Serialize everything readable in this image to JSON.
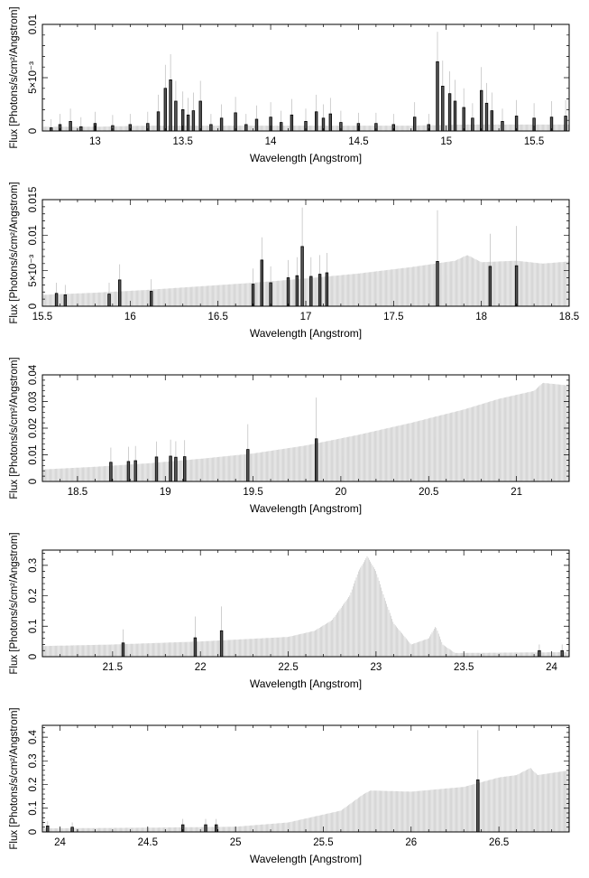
{
  "chart_data": [
    {
      "type": "line",
      "xlabel": "Wavelength [Angstrom]",
      "ylabel": "Flux [Photons/s/cm²/Angstrom]",
      "xlim": [
        12.7,
        15.7
      ],
      "ylim": [
        0,
        0.01
      ],
      "x_ticks": [
        13,
        13.5,
        14,
        14.5,
        15,
        15.5
      ],
      "x_tick_labels": [
        "13",
        "13.5",
        "14",
        "14.5",
        "15",
        "15.5"
      ],
      "y_ticks": [
        0,
        0.005,
        0.01
      ],
      "y_tick_labels": [
        "0",
        "5×10⁻³",
        "0.01"
      ],
      "series": [
        {
          "role": "model",
          "color": "#bdbdbd",
          "x": [
            12.7,
            13.0,
            13.3,
            13.6,
            13.9,
            14.2,
            14.5,
            14.8,
            15.1,
            15.4,
            15.7
          ],
          "y": [
            0.0004,
            0.0004,
            0.0005,
            0.0005,
            0.0005,
            0.0005,
            0.0005,
            0.0005,
            0.0006,
            0.0006,
            0.0006
          ]
        },
        {
          "role": "data",
          "color": "#000000",
          "x": [
            12.75,
            12.8,
            12.86,
            12.92,
            13.0,
            13.1,
            13.2,
            13.3,
            13.36,
            13.4,
            13.43,
            13.46,
            13.5,
            13.53,
            13.56,
            13.6,
            13.66,
            13.72,
            13.8,
            13.86,
            13.92,
            14.0,
            14.06,
            14.12,
            14.2,
            14.26,
            14.3,
            14.34,
            14.4,
            14.5,
            14.6,
            14.7,
            14.82,
            14.9,
            14.95,
            14.98,
            15.02,
            15.05,
            15.1,
            15.15,
            15.2,
            15.23,
            15.26,
            15.32,
            15.4,
            15.5,
            15.6,
            15.68
          ],
          "y": [
            0.0003,
            0.0006,
            0.0009,
            0.0004,
            0.0007,
            0.0005,
            0.0006,
            0.0007,
            0.0018,
            0.004,
            0.0048,
            0.0028,
            0.002,
            0.0015,
            0.0019,
            0.0028,
            0.0006,
            0.0012,
            0.0017,
            0.0006,
            0.0011,
            0.0013,
            0.0008,
            0.0015,
            0.0009,
            0.0018,
            0.0012,
            0.0016,
            0.0008,
            0.0007,
            0.0007,
            0.0006,
            0.0013,
            0.0006,
            0.0065,
            0.0042,
            0.0035,
            0.0028,
            0.0022,
            0.0012,
            0.0038,
            0.0026,
            0.0019,
            0.0009,
            0.0014,
            0.0012,
            0.0013,
            0.0014
          ],
          "err": [
            0.0008,
            0.001,
            0.0012,
            0.0009,
            0.0011,
            0.001,
            0.001,
            0.0011,
            0.0016,
            0.0022,
            0.0024,
            0.0019,
            0.0017,
            0.0016,
            0.0017,
            0.0019,
            0.001,
            0.0013,
            0.0015,
            0.001,
            0.0013,
            0.0014,
            0.0011,
            0.0015,
            0.0012,
            0.0016,
            0.0013,
            0.0015,
            0.0011,
            0.001,
            0.001,
            0.001,
            0.0014,
            0.001,
            0.0028,
            0.0024,
            0.0021,
            0.002,
            0.0018,
            0.0014,
            0.0022,
            0.0019,
            0.0017,
            0.0012,
            0.0015,
            0.0014,
            0.0015,
            0.0015
          ]
        }
      ]
    },
    {
      "type": "line",
      "xlabel": "Wavelength [Angstrom]",
      "ylabel": "Flux [Photons/s/cm²/Angstrom]",
      "xlim": [
        15.5,
        18.5
      ],
      "ylim": [
        0,
        0.015
      ],
      "x_ticks": [
        15.5,
        16,
        16.5,
        17,
        17.5,
        18,
        18.5
      ],
      "x_tick_labels": [
        "15.5",
        "16",
        "16.5",
        "17",
        "17.5",
        "18",
        "18.5"
      ],
      "y_ticks": [
        0,
        0.005,
        0.01,
        0.015
      ],
      "y_tick_labels": [
        "0",
        "5×10⁻³",
        "0.01",
        "0.015"
      ],
      "series": [
        {
          "role": "model",
          "color": "#bdbdbd",
          "x": [
            15.5,
            15.8,
            16.1,
            16.4,
            16.7,
            17.0,
            17.3,
            17.6,
            17.85,
            17.92,
            18.0,
            18.2,
            18.35,
            18.5
          ],
          "y": [
            0.0016,
            0.0019,
            0.0023,
            0.0028,
            0.0033,
            0.0039,
            0.0046,
            0.0055,
            0.0064,
            0.0072,
            0.0062,
            0.0064,
            0.006,
            0.0063
          ]
        },
        {
          "role": "data",
          "color": "#000000",
          "x": [
            15.58,
            15.63,
            15.88,
            15.94,
            16.12,
            16.7,
            16.75,
            16.8,
            16.9,
            16.95,
            16.98,
            17.03,
            17.08,
            17.12,
            17.75,
            18.05,
            18.2
          ],
          "y": [
            0.0018,
            0.0016,
            0.0017,
            0.0037,
            0.0021,
            0.0031,
            0.0065,
            0.0033,
            0.004,
            0.0043,
            0.0084,
            0.0042,
            0.0045,
            0.0047,
            0.0063,
            0.0056,
            0.0057
          ],
          "err": [
            0.0015,
            0.0014,
            0.0016,
            0.0022,
            0.0017,
            0.0022,
            0.0032,
            0.0023,
            0.0025,
            0.0026,
            0.0055,
            0.0027,
            0.0027,
            0.0028,
            0.0072,
            0.0046,
            0.0056
          ]
        }
      ]
    },
    {
      "type": "line",
      "xlabel": "Wavelength [Angstrom]",
      "ylabel": "Flux [Photons/s/cm²/Angstrom]",
      "xlim": [
        18.3,
        21.3
      ],
      "ylim": [
        0,
        0.04
      ],
      "x_ticks": [
        18.5,
        19,
        19.5,
        20,
        20.5,
        21
      ],
      "x_tick_labels": [
        "18.5",
        "19",
        "19.5",
        "20",
        "20.5",
        "21"
      ],
      "y_ticks": [
        0,
        0.01,
        0.02,
        0.03,
        0.04
      ],
      "y_tick_labels": [
        "0",
        "0.01",
        "0.02",
        "0.03",
        "0.04"
      ],
      "series": [
        {
          "role": "model",
          "color": "#bdbdbd",
          "x": [
            18.3,
            18.6,
            18.9,
            19.2,
            19.5,
            19.8,
            20.1,
            20.4,
            20.7,
            20.9,
            21.1,
            21.15,
            21.3
          ],
          "y": [
            0.0045,
            0.0055,
            0.0068,
            0.0085,
            0.0105,
            0.0135,
            0.0175,
            0.022,
            0.027,
            0.031,
            0.034,
            0.037,
            0.036
          ]
        },
        {
          "role": "data",
          "color": "#000000",
          "x": [
            18.69,
            18.79,
            18.83,
            18.95,
            19.03,
            19.06,
            19.11,
            19.47,
            19.86
          ],
          "y": [
            0.0072,
            0.0075,
            0.0078,
            0.0092,
            0.0095,
            0.0091,
            0.0093,
            0.012,
            0.016
          ],
          "err": [
            0.0055,
            0.0055,
            0.0055,
            0.0058,
            0.0062,
            0.006,
            0.0062,
            0.0095,
            0.0155
          ]
        }
      ]
    },
    {
      "type": "line",
      "xlabel": "Wavelength [Angstrom]",
      "ylabel": "Flux [Photons/s/cm²/Angstrom]",
      "xlim": [
        21.1,
        24.1
      ],
      "ylim": [
        0,
        0.35
      ],
      "x_ticks": [
        21.5,
        22,
        22.5,
        23,
        23.5,
        24
      ],
      "x_tick_labels": [
        "21.5",
        "22",
        "22.5",
        "23",
        "23.5",
        "24"
      ],
      "y_ticks": [
        0,
        0.1,
        0.2,
        0.3
      ],
      "y_tick_labels": [
        "0",
        "0.1",
        "0.2",
        "0.3"
      ],
      "series": [
        {
          "role": "model",
          "color": "#bdbdbd",
          "x": [
            21.1,
            21.5,
            22.0,
            22.5,
            22.65,
            22.75,
            22.85,
            22.9,
            22.95,
            23.0,
            23.05,
            23.1,
            23.2,
            23.3,
            23.34,
            23.38,
            23.45,
            24.1
          ],
          "y": [
            0.035,
            0.04,
            0.05,
            0.065,
            0.085,
            0.12,
            0.2,
            0.28,
            0.33,
            0.28,
            0.19,
            0.11,
            0.04,
            0.06,
            0.1,
            0.04,
            0.012,
            0.015
          ]
        },
        {
          "role": "data",
          "color": "#000000",
          "x": [
            21.56,
            21.97,
            22.12,
            23.93,
            24.06
          ],
          "y": [
            0.045,
            0.062,
            0.085,
            0.02,
            0.02
          ],
          "err": [
            0.045,
            0.07,
            0.08,
            0.02,
            0.02
          ]
        }
      ]
    },
    {
      "type": "line",
      "xlabel": "Wavelength [Angstrom]",
      "ylabel": "Flux [Photons/s/cm²/Angstrom]",
      "xlim": [
        23.9,
        26.9
      ],
      "ylim": [
        0,
        0.45
      ],
      "x_ticks": [
        24,
        24.5,
        25,
        25.5,
        26,
        26.5
      ],
      "x_tick_labels": [
        "24",
        "24.5",
        "25",
        "25.5",
        "26",
        "26.5"
      ],
      "y_ticks": [
        0,
        0.1,
        0.2,
        0.3,
        0.4
      ],
      "y_tick_labels": [
        "0",
        "0.1",
        "0.2",
        "0.3",
        "0.4"
      ],
      "series": [
        {
          "role": "model",
          "color": "#bdbdbd",
          "x": [
            23.9,
            24.5,
            25.0,
            25.3,
            25.6,
            25.73,
            25.77,
            26.0,
            26.3,
            26.5,
            26.6,
            26.68,
            26.72,
            26.9
          ],
          "y": [
            0.015,
            0.018,
            0.022,
            0.04,
            0.09,
            0.16,
            0.175,
            0.17,
            0.19,
            0.23,
            0.24,
            0.27,
            0.24,
            0.26
          ]
        },
        {
          "role": "data",
          "color": "#000000",
          "x": [
            23.93,
            24.07,
            24.7,
            24.83,
            24.89,
            26.38
          ],
          "y": [
            0.025,
            0.02,
            0.03,
            0.03,
            0.03,
            0.22
          ],
          "err": [
            0.02,
            0.02,
            0.025,
            0.025,
            0.025,
            0.21
          ]
        }
      ]
    }
  ]
}
